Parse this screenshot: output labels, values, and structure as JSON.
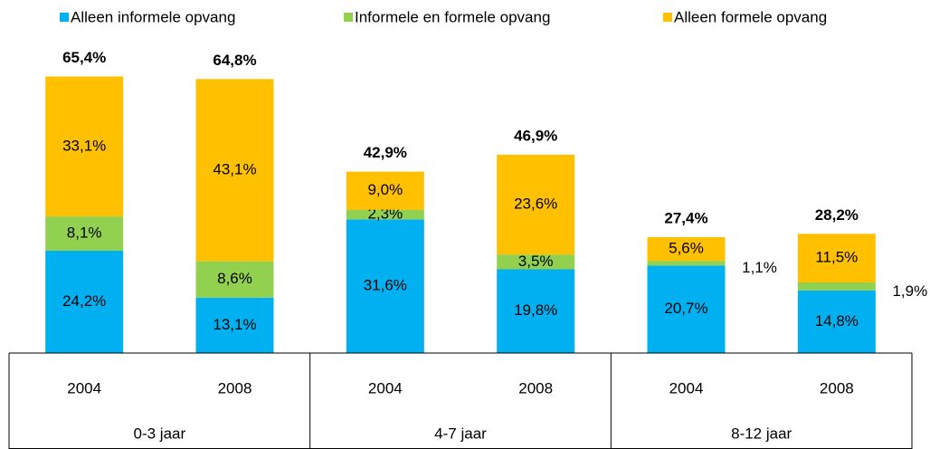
{
  "chart_data": {
    "type": "stacked-bar",
    "categories": [
      "2004",
      "2008",
      "2004",
      "2008",
      "2004",
      "2008"
    ],
    "groups": [
      "0-3 jaar",
      "4-7 jaar",
      "8-12 jaar"
    ],
    "series": [
      {
        "name": "Alleen informele opvang",
        "color": "#00b0f0",
        "values": [
          24.2,
          13.1,
          31.6,
          19.8,
          20.7,
          14.8
        ],
        "value_labels": [
          "24,2%",
          "13,1%",
          "31,6%",
          "19,8%",
          "20,7%",
          "14,8%"
        ]
      },
      {
        "name": "Informele en formele opvang",
        "color": "#92d050",
        "values": [
          8.1,
          8.6,
          2.3,
          3.5,
          1.1,
          1.9
        ],
        "value_labels": [
          "8,1%",
          "8,6%",
          "2,3%",
          "3,5%",
          "1,1%",
          "1,9%"
        ]
      },
      {
        "name": "Alleen formele opvang",
        "color": "#ffc000",
        "values": [
          33.1,
          43.1,
          9.0,
          23.6,
          5.6,
          11.5
        ],
        "value_labels": [
          "33,1%",
          "43,1%",
          "9,0%",
          "23,6%",
          "5,6%",
          "11,5%"
        ]
      }
    ],
    "totals": {
      "values": [
        65.4,
        64.8,
        42.9,
        46.9,
        27.4,
        28.2
      ],
      "value_labels": [
        "65,4%",
        "64,8%",
        "42,9%",
        "46,9%",
        "27,4%",
        "28,2%"
      ]
    },
    "ylim": [
      0,
      70
    ],
    "legend": "top"
  }
}
